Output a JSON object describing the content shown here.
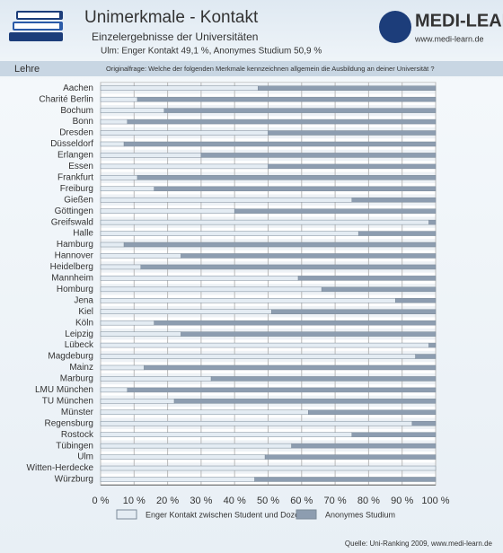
{
  "chart_data": {
    "type": "stacked-bar",
    "title": "Unimerkmale - Kontakt",
    "subtitle": "Einzelergebnisse der Universitäten",
    "highlight": "Ulm: Enger Kontakt 49,1 %, Anonymes Studium 50,9 %",
    "section": "Lehre",
    "question": "Originalfrage: Welche der folgenden Merkmale kennzeichnen allgemein die Ausbildung an deiner Universität ?",
    "logo": "MEDI-LEARN",
    "logo_url": "www.medi-learn.de",
    "source": "Quelle: Uni-Ranking 2009, www.medi-learn.de",
    "categories": [
      "Aachen",
      "Charité Berlin",
      "Bochum",
      "Bonn",
      "Dresden",
      "Düsseldorf",
      "Erlangen",
      "Essen",
      "Frankfurt",
      "Freiburg",
      "Gießen",
      "Göttingen",
      "Greifswald",
      "Halle",
      "Hamburg",
      "Hannover",
      "Heidelberg",
      "Mannheim",
      "Homburg",
      "Jena",
      "Kiel",
      "Köln",
      "Leipzig",
      "Lübeck",
      "Magdeburg",
      "Mainz",
      "Marburg",
      "LMU München",
      "TU München",
      "Münster",
      "Regensburg",
      "Rostock",
      "Tübingen",
      "Ulm",
      "Witten-Herdecke",
      "Würzburg"
    ],
    "series": [
      {
        "name": "Enger Kontakt zwischen Student und Dozent",
        "color": "#e4ecf3",
        "values": [
          47,
          11,
          19,
          8,
          50,
          7,
          30,
          50,
          11,
          16,
          75,
          40,
          98,
          77,
          7,
          24,
          12,
          59,
          66,
          88,
          51,
          16,
          24,
          98,
          94,
          13,
          33,
          8,
          22,
          62,
          93,
          75,
          57,
          49.1,
          100,
          46
        ]
      },
      {
        "name": "Anonymes Studium",
        "color": "#8d9db0",
        "values": [
          53,
          89,
          81,
          92,
          50,
          93,
          70,
          50,
          89,
          84,
          25,
          60,
          2,
          23,
          93,
          76,
          88,
          41,
          34,
          12,
          49,
          84,
          76,
          2,
          6,
          87,
          67,
          92,
          78,
          38,
          7,
          25,
          43,
          50.9,
          0,
          54
        ]
      }
    ],
    "xlim": [
      0,
      100
    ],
    "xticks": [
      {
        "value": 0,
        "label": "0 %"
      },
      {
        "value": 10,
        "label": "10 %"
      },
      {
        "value": 20,
        "label": "20 %"
      },
      {
        "value": 30,
        "label": "30 %"
      },
      {
        "value": 40,
        "label": "40 %"
      },
      {
        "value": 50,
        "label": "50 %"
      },
      {
        "value": 60,
        "label": "60 %"
      },
      {
        "value": 70,
        "label": "70 %"
      },
      {
        "value": 80,
        "label": "80 %"
      },
      {
        "value": 90,
        "label": "90 %"
      },
      {
        "value": 100,
        "label": "100 %"
      }
    ],
    "grid": true
  }
}
